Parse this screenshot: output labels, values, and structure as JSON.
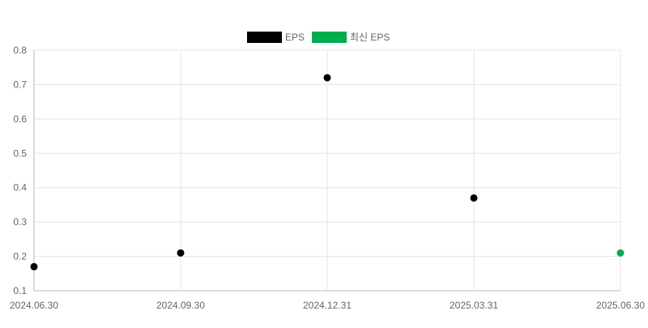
{
  "chart_data": {
    "type": "scatter",
    "title": "",
    "xlabel": "",
    "ylabel": "",
    "categories": [
      "2024.06.30",
      "2024.09.30",
      "2024.12.31",
      "2025.03.31",
      "2025.06.30"
    ],
    "ylim": [
      0.1,
      0.8
    ],
    "yticks": [
      "0.8",
      "0.7",
      "0.6",
      "0.5",
      "0.4",
      "0.3",
      "0.2",
      "0.1"
    ],
    "grid": true,
    "legend_position": "top",
    "series": [
      {
        "name": "EPS",
        "color": "#000000",
        "values": [
          0.17,
          0.21,
          0.72,
          0.37,
          null
        ]
      },
      {
        "name": "최신 EPS",
        "color": "#00ad4f",
        "values": [
          null,
          null,
          null,
          null,
          0.21
        ]
      }
    ]
  }
}
